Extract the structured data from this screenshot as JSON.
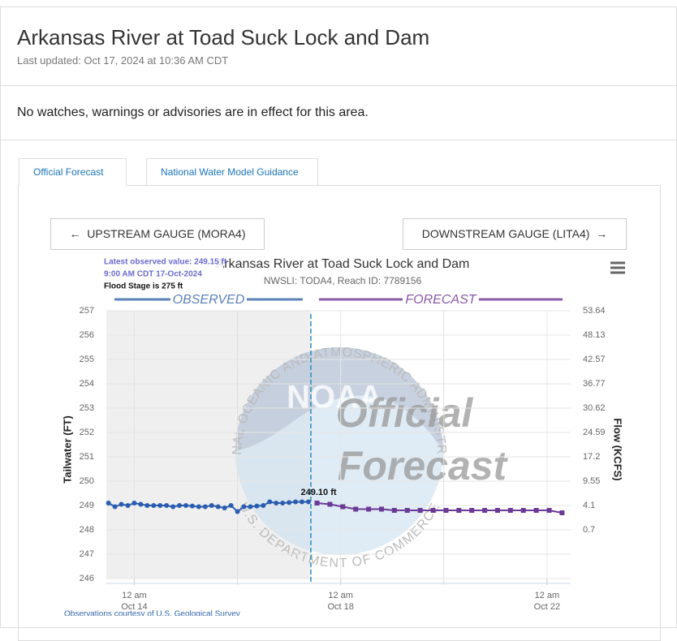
{
  "header": {
    "title": "Arkansas River at Toad Suck Lock and Dam",
    "updated": "Last updated: Oct 17, 2024 at 10:36 AM CDT"
  },
  "alert": "No watches, warnings or advisories are in effect for this area.",
  "tabs": [
    "Official Forecast",
    "National Water Model Guidance"
  ],
  "buttons": {
    "upstream": "UPSTREAM GAUGE (MORA4)",
    "downstream": "DOWNSTREAM GAUGE (LITA4)"
  },
  "chart_data": {
    "type": "line",
    "title": "Arkansas River at Toad Suck Lock and Dam",
    "subtitle": "NWSLI: TODA4, Reach ID: 7789156",
    "ylabel": "Tailwater (FT)",
    "y2label": "Flow (KCFS)",
    "annotations": {
      "latest": "Latest observed value: 249.15 ft",
      "latest_time": "9:00 AM CDT 17-Oct-2024",
      "flood": "Flood Stage is 275 ft",
      "forecast_label": "249.10 ft",
      "credit": "Observations courtesy of U.S. Geological Survey"
    },
    "watermark": {
      "line1": "Official",
      "line2": "Forecast",
      "logo": "NOAA",
      "ring_top": "NATIONAL OCEANIC AND ATMOSPHERIC ADMINISTRATION",
      "ring_bottom": "U.S. DEPARTMENT OF COMMERCE"
    },
    "xlim": [
      -13,
      203
    ],
    "ylim": [
      246,
      257
    ],
    "yticks": [
      246,
      247,
      248,
      249,
      250,
      251,
      252,
      253,
      254,
      255,
      256,
      257
    ],
    "flow_labels": [
      {
        "at": 248,
        "label": "0.7"
      },
      {
        "at": 249,
        "label": "4.1"
      },
      {
        "at": 250,
        "label": "9.55"
      },
      {
        "at": 251,
        "label": "17.2"
      },
      {
        "at": 252,
        "label": "24.59"
      },
      {
        "at": 253,
        "label": "30.62"
      },
      {
        "at": 254,
        "label": "36.77"
      },
      {
        "at": 255,
        "label": "42.57"
      },
      {
        "at": 256,
        "label": "48.13"
      },
      {
        "at": 257,
        "label": "53.64"
      }
    ],
    "xticks": [
      {
        "value": 0,
        "label": "12 am",
        "date": "Oct 14"
      },
      {
        "value": 96,
        "label": "12 am",
        "date": "Oct 18"
      },
      {
        "value": 192,
        "label": "12 am",
        "date": "Oct 22"
      }
    ],
    "minor_xticks": [
      48,
      144
    ],
    "series": [
      {
        "name": "OBSERVED",
        "color": "#2a5db0",
        "x": [
          -12,
          -9,
          -6,
          -3,
          0,
          3,
          6,
          9,
          12,
          15,
          18,
          21,
          24,
          27,
          30,
          33,
          36,
          39,
          42,
          45,
          48,
          51,
          54,
          57,
          60,
          63,
          66,
          69,
          72,
          75,
          78,
          81
        ],
        "values": [
          249.1,
          248.95,
          249.05,
          249.0,
          249.1,
          249.05,
          249.0,
          249.0,
          249.0,
          249.0,
          248.95,
          249.0,
          249.0,
          248.98,
          248.95,
          248.95,
          249.0,
          248.95,
          248.9,
          249.0,
          248.75,
          248.95,
          248.95,
          248.98,
          249.0,
          249.15,
          249.1,
          249.1,
          249.12,
          249.15,
          249.15,
          249.15
        ]
      },
      {
        "name": "FORECAST",
        "color": "#6b3a96",
        "x": [
          85,
          91,
          97,
          103,
          109,
          115,
          121,
          127,
          133,
          139,
          145,
          151,
          157,
          163,
          169,
          175,
          181,
          187,
          193,
          199
        ],
        "values": [
          249.1,
          249.05,
          248.95,
          248.85,
          248.85,
          248.85,
          248.8,
          248.8,
          248.8,
          248.8,
          248.8,
          248.8,
          248.8,
          248.8,
          248.8,
          248.8,
          248.8,
          248.8,
          248.8,
          248.7
        ]
      }
    ]
  }
}
